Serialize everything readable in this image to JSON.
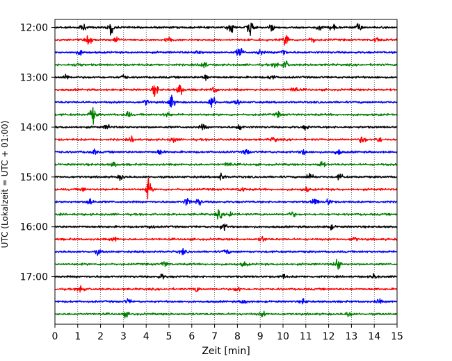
{
  "chart_data": {
    "type": "line",
    "title": "",
    "xlabel": "Zeit  [min]",
    "ylabel": "UTC (Lokalzeit = UTC + 01:00)",
    "xlim": [
      0,
      15
    ],
    "x_ticks": [
      "0",
      "1",
      "2",
      "3",
      "4",
      "5",
      "6",
      "7",
      "8",
      "9",
      "10",
      "11",
      "12",
      "13",
      "14",
      "15"
    ],
    "y_ticks": [
      "12:00",
      "13:00",
      "14:00",
      "15:00",
      "16:00",
      "17:00"
    ],
    "grid": "vertical dotted at each minute",
    "trace_interval_min": 15,
    "first_trace_utc": "12:00",
    "trace_colors": [
      "#000000",
      "#ff0000",
      "#0000ff",
      "#008000"
    ],
    "traces": [
      {
        "start": "12:00",
        "color": "#000000",
        "bursts": [
          [
            1.2,
            1.1
          ],
          [
            2.45,
            2.3
          ],
          [
            7.7,
            1.8
          ],
          [
            8.55,
            2.6
          ],
          [
            9.5,
            0.9
          ],
          [
            11.6,
            1.0
          ],
          [
            12.2,
            1.2
          ],
          [
            13.3,
            1.5
          ]
        ]
      },
      {
        "start": "12:15",
        "color": "#ff0000",
        "bursts": [
          [
            1.5,
            1.3
          ],
          [
            2.7,
            0.9
          ],
          [
            5.0,
            0.9
          ],
          [
            10.15,
            1.8
          ],
          [
            11.3,
            0.9
          ],
          [
            14.1,
            0.7
          ]
        ]
      },
      {
        "start": "12:30",
        "color": "#0000ff",
        "bursts": [
          [
            1.1,
            0.8
          ],
          [
            8.1,
            1.7
          ],
          [
            10.0,
            1.2
          ],
          [
            9.0,
            0.9
          ],
          [
            6.3,
            0.8
          ]
        ]
      },
      {
        "start": "12:45",
        "color": "#008000",
        "bursts": [
          [
            1.0,
            0.9
          ],
          [
            6.5,
            1.3
          ],
          [
            10.1,
            1.1
          ],
          [
            9.7,
            0.8
          ]
        ]
      },
      {
        "start": "13:00",
        "color": "#000000",
        "bursts": [
          [
            0.5,
            0.8
          ],
          [
            3.0,
            0.8
          ],
          [
            6.6,
            1.0
          ],
          [
            9.5,
            0.8
          ]
        ]
      },
      {
        "start": "13:15",
        "color": "#ff0000",
        "bursts": [
          [
            4.4,
            1.8
          ],
          [
            5.5,
            2.0
          ],
          [
            7.0,
            0.9
          ],
          [
            10.5,
            1.0
          ]
        ]
      },
      {
        "start": "13:30",
        "color": "#0000ff",
        "bursts": [
          [
            5.1,
            2.4
          ],
          [
            6.9,
            2.2
          ],
          [
            4.0,
            0.8
          ],
          [
            8.0,
            0.8
          ]
        ]
      },
      {
        "start": "13:45",
        "color": "#008000",
        "bursts": [
          [
            1.65,
            2.6
          ],
          [
            3.2,
            0.9
          ],
          [
            4.9,
            0.8
          ],
          [
            9.8,
            0.7
          ]
        ]
      },
      {
        "start": "14:00",
        "color": "#000000",
        "bursts": [
          [
            2.3,
            0.8
          ],
          [
            6.5,
            0.9
          ],
          [
            8.1,
            0.9
          ],
          [
            11.0,
            0.7
          ]
        ]
      },
      {
        "start": "14:15",
        "color": "#ff0000",
        "bursts": [
          [
            3.4,
            0.8
          ],
          [
            5.2,
            0.8
          ],
          [
            9.6,
            0.7
          ],
          [
            13.5,
            1.1
          ],
          [
            14.2,
            0.9
          ]
        ]
      },
      {
        "start": "14:30",
        "color": "#0000ff",
        "bursts": [
          [
            1.7,
            0.8
          ],
          [
            4.6,
            0.9
          ],
          [
            8.4,
            0.9
          ],
          [
            10.9,
            0.9
          ],
          [
            12.4,
            0.9
          ]
        ]
      },
      {
        "start": "14:45",
        "color": "#008000",
        "bursts": [
          [
            2.6,
            0.8
          ],
          [
            7.6,
            0.8
          ],
          [
            11.7,
            1.0
          ]
        ]
      },
      {
        "start": "15:00",
        "color": "#000000",
        "bursts": [
          [
            2.9,
            0.9
          ],
          [
            7.3,
            1.1
          ],
          [
            11.2,
            1.6
          ],
          [
            12.5,
            0.9
          ]
        ]
      },
      {
        "start": "15:15",
        "color": "#ff0000",
        "bursts": [
          [
            4.1,
            2.8
          ],
          [
            1.2,
            0.7
          ],
          [
            8.2,
            0.7
          ],
          [
            11.0,
            0.7
          ]
        ]
      },
      {
        "start": "15:30",
        "color": "#0000ff",
        "bursts": [
          [
            1.55,
            1.4
          ],
          [
            5.8,
            1.2
          ],
          [
            6.3,
            1.1
          ],
          [
            11.4,
            1.2
          ],
          [
            12.0,
            1.0
          ]
        ]
      },
      {
        "start": "15:45",
        "color": "#008000",
        "bursts": [
          [
            7.2,
            1.2
          ],
          [
            7.7,
            1.0
          ],
          [
            10.4,
            0.8
          ]
        ]
      },
      {
        "start": "16:00",
        "color": "#000000",
        "bursts": [
          [
            7.4,
            1.1
          ],
          [
            4.2,
            0.7
          ],
          [
            12.1,
            0.7
          ]
        ]
      },
      {
        "start": "16:15",
        "color": "#ff0000",
        "bursts": [
          [
            2.6,
            0.7
          ],
          [
            9.1,
            0.8
          ],
          [
            13.1,
            0.7
          ]
        ]
      },
      {
        "start": "16:30",
        "color": "#0000ff",
        "bursts": [
          [
            1.9,
            0.7
          ],
          [
            5.6,
            0.8
          ],
          [
            7.5,
            0.8
          ]
        ]
      },
      {
        "start": "16:45",
        "color": "#008000",
        "bursts": [
          [
            4.8,
            0.9
          ],
          [
            12.4,
            2.0
          ],
          [
            8.3,
            0.7
          ]
        ]
      },
      {
        "start": "17:00",
        "color": "#000000",
        "bursts": [
          [
            4.7,
            0.8
          ],
          [
            14.0,
            0.8
          ],
          [
            10.0,
            0.7
          ]
        ]
      },
      {
        "start": "17:15",
        "color": "#ff0000",
        "bursts": [
          [
            1.15,
            1.4
          ],
          [
            6.2,
            0.8
          ],
          [
            8.0,
            0.8
          ]
        ]
      },
      {
        "start": "17:30",
        "color": "#0000ff",
        "bursts": [
          [
            3.2,
            0.7
          ],
          [
            8.3,
            0.8
          ],
          [
            10.9,
            0.8
          ],
          [
            14.2,
            0.7
          ]
        ]
      },
      {
        "start": "17:45",
        "color": "#008000",
        "bursts": [
          [
            3.1,
            0.7
          ],
          [
            12.9,
            0.9
          ],
          [
            9.1,
            0.7
          ]
        ]
      }
    ]
  }
}
